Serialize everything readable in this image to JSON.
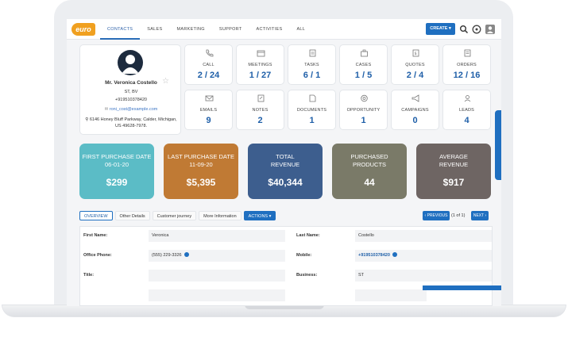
{
  "header": {
    "logo_text": "euro",
    "nav": [
      "CONTACTS",
      "SALES",
      "MARKETING",
      "SUPPORT",
      "ACTIVITIES",
      "ALL"
    ],
    "create_label": "CREATE ▾",
    "icons": [
      "search-icon",
      "help-icon",
      "user-icon"
    ]
  },
  "profile": {
    "name": "Mr. Veronica Costello",
    "company": "ST, BV",
    "phone": "+919510378420",
    "email": "roni_cost@example.com",
    "address_line1": "6146 Honey Bluff Parkway, Calder, Michigan,",
    "address_line2": "US 49628-7978."
  },
  "stats": [
    {
      "label": "CALL",
      "value": "2 / 24",
      "icon": "phone-icon"
    },
    {
      "label": "MEETINGS",
      "value": "1 / 27",
      "icon": "calendar-icon"
    },
    {
      "label": "TASKS",
      "value": "6 / 1",
      "icon": "tasks-icon"
    },
    {
      "label": "CASES",
      "value": "1 / 5",
      "icon": "cases-icon"
    },
    {
      "label": "QUOTES",
      "value": "2 / 4",
      "icon": "quotes-icon"
    },
    {
      "label": "ORDERS",
      "value": "12 / 16",
      "icon": "orders-icon"
    },
    {
      "label": "EMAILS",
      "value": "9",
      "icon": "email-icon"
    },
    {
      "label": "NOTES",
      "value": "2",
      "icon": "notes-icon"
    },
    {
      "label": "DOCUMENTS",
      "value": "1",
      "icon": "documents-icon"
    },
    {
      "label": "OPPORTUNITY",
      "value": "1",
      "icon": "opportunity-icon"
    },
    {
      "label": "CAMPAIGNS",
      "value": "0",
      "icon": "megaphone-icon"
    },
    {
      "label": "LEADS",
      "value": "4",
      "icon": "leads-icon"
    }
  ],
  "summary": [
    {
      "label1": "FIRST PURCHASE DATE",
      "label2": "06-01-20",
      "value": "$299",
      "color": "#5bbcc6"
    },
    {
      "label1": "LAST PURCHASE DATE",
      "label2": "11-09-20",
      "value": "$5,395",
      "color": "#c07a34"
    },
    {
      "label1": "TOTAL",
      "label2": "REVENUE",
      "value": "$40,344",
      "color": "#3d5e8e"
    },
    {
      "label1": "PURCHASED",
      "label2": "PRODUCTS",
      "value": "44",
      "color": "#7a7a68"
    },
    {
      "label1": "AVERAGE",
      "label2": "REVENUE",
      "value": "$917",
      "color": "#6e6563"
    }
  ],
  "tabs": [
    "OVERVIEW",
    "Other Details",
    "Customer journey",
    "More Information",
    "ACTIONS ▾"
  ],
  "pagination": {
    "previous": "‹ PREVIOUS",
    "count": "(1 of 1)",
    "next": "NEXT ›"
  },
  "form": {
    "first_name_label": "First Name:",
    "first_name": "Veronica",
    "last_name_label": "Last Name:",
    "last_name": "Costello",
    "office_phone_label": "Office Phone:",
    "office_phone": "(555) 229-3326",
    "mobile_label": "Mobile:",
    "mobile": "+919510378420",
    "title_label": "Title:",
    "title": "",
    "business_label": "Business:",
    "business": "ST"
  }
}
